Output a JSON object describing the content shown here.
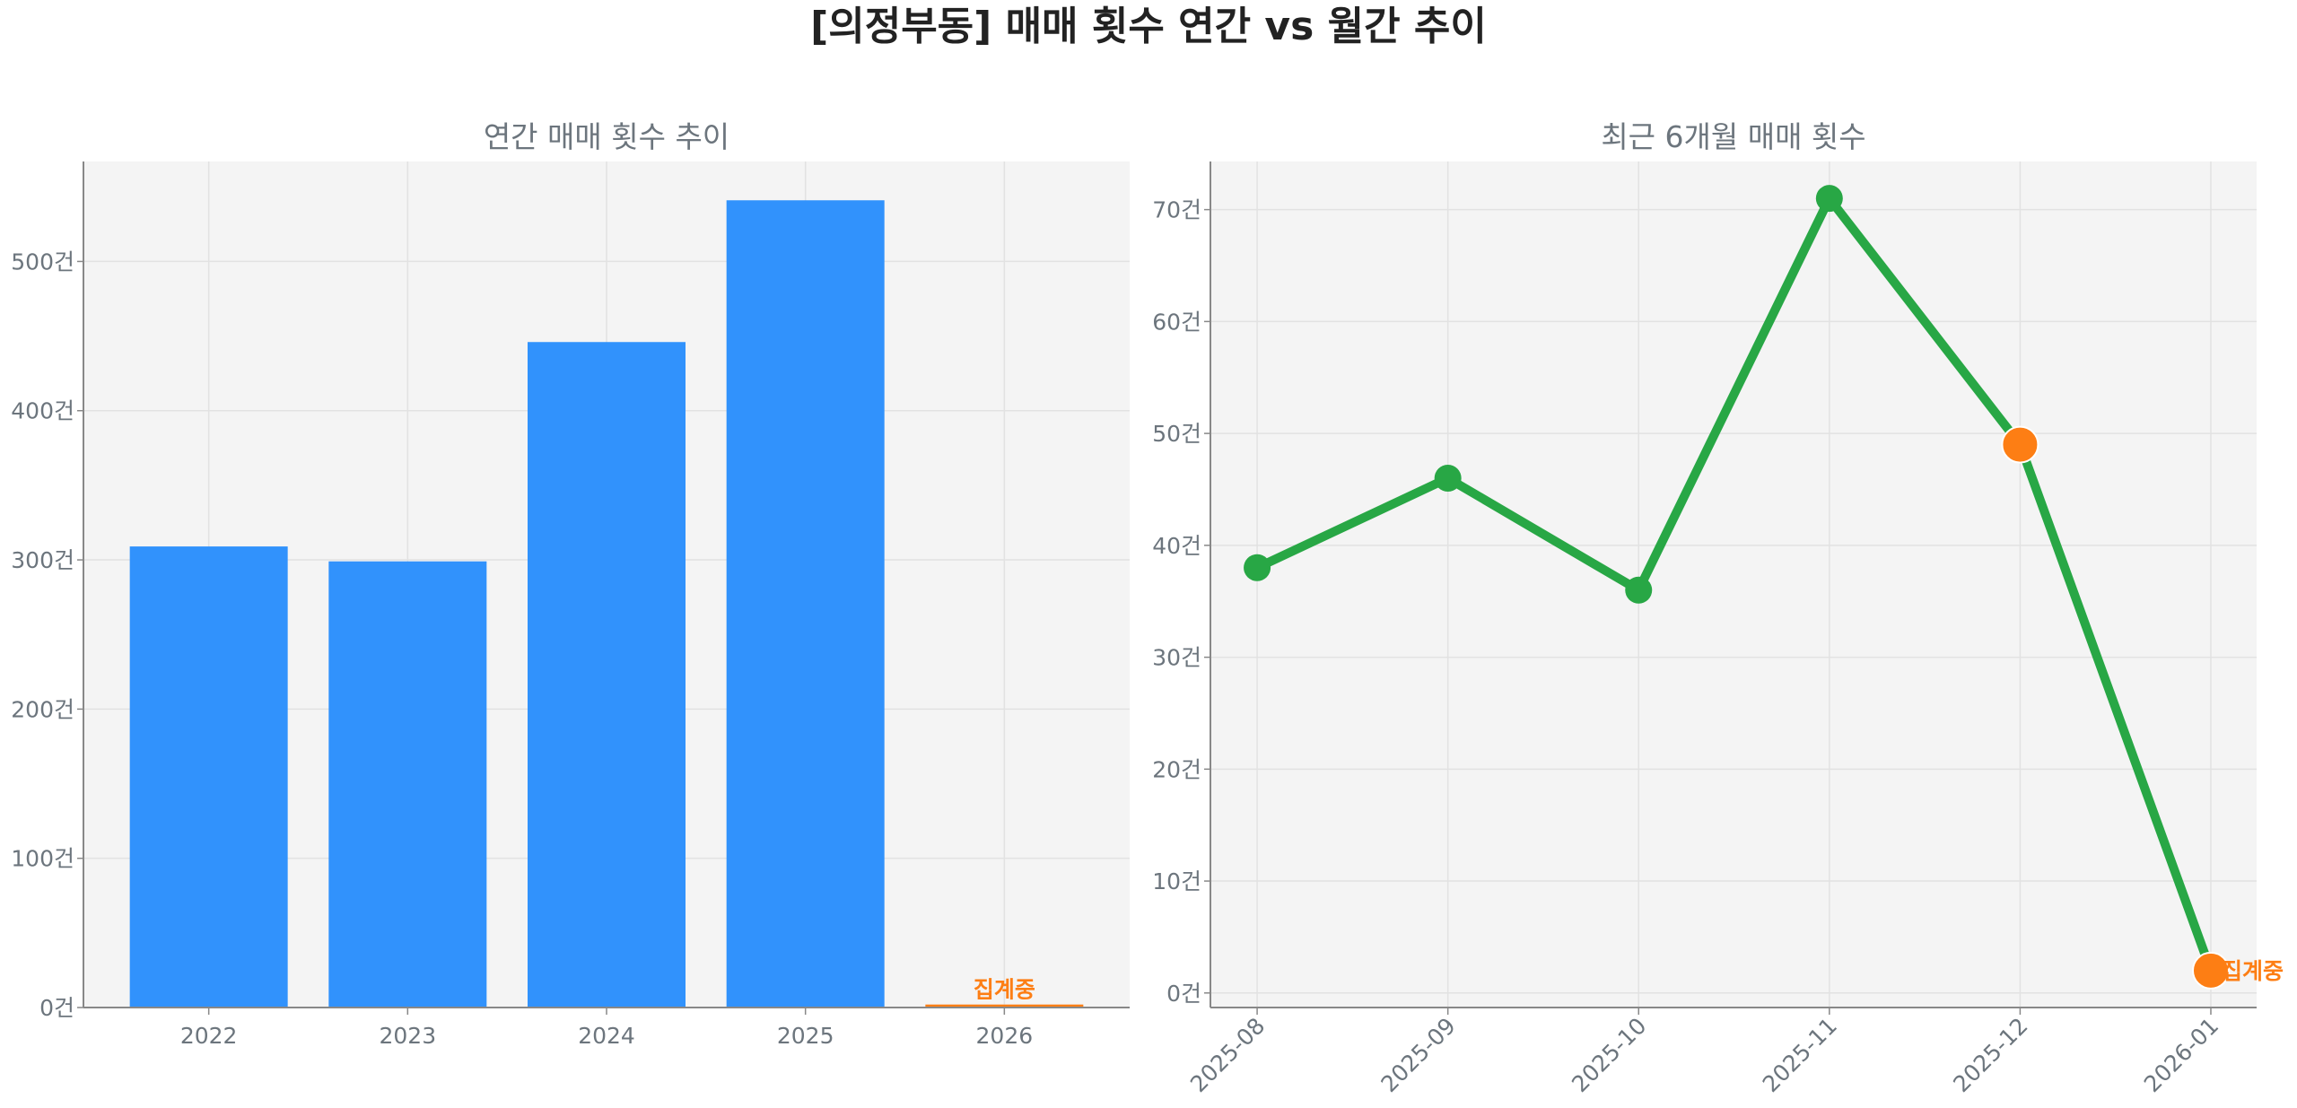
{
  "title": "[의정부동] 매매 횟수 연간 vs 월간 추이",
  "chart_data": [
    {
      "type": "bar",
      "title": "연간 매매 횟수 추이",
      "categories": [
        "2022",
        "2023",
        "2024",
        "2025",
        "2026"
      ],
      "values": [
        309,
        299,
        446,
        541,
        2
      ],
      "bar_colors": [
        "#3192fc",
        "#3192fc",
        "#3192fc",
        "#3192fc",
        "#fd7e14"
      ],
      "ylim": [
        0,
        567
      ],
      "yticks": [
        0,
        100,
        200,
        300,
        400,
        500
      ],
      "ytick_suffix": "건",
      "grid": true,
      "annotations": [
        {
          "category": "2026",
          "text": "집계중"
        }
      ]
    },
    {
      "type": "line",
      "title": "최근 6개월 매매 횟수",
      "x": [
        "2025-08",
        "2025-09",
        "2025-10",
        "2025-11",
        "2025-12",
        "2026-01"
      ],
      "values": [
        38,
        46,
        36,
        71,
        49,
        2
      ],
      "line_color": "#28a745",
      "highlight_color": "#fd7e14",
      "highlighted": [
        "2025-12",
        "2026-01"
      ],
      "ylim": [
        -1.3,
        74.3
      ],
      "yticks": [
        0,
        10,
        20,
        30,
        40,
        50,
        60,
        70
      ],
      "ytick_suffix": "건",
      "grid": true,
      "annotations": [
        {
          "x": "2026-01",
          "text": "집계중"
        }
      ]
    }
  ]
}
